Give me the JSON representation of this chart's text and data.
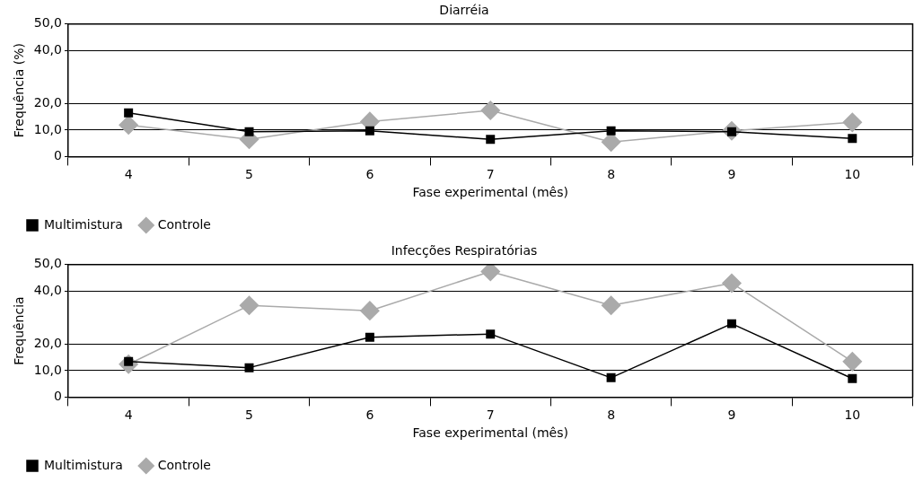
{
  "chart_data": [
    {
      "type": "line",
      "title": "Diarréia",
      "xlabel": "Fase experimental (mês)",
      "ylabel": "Frequência (%)",
      "categories": [
        "4",
        "5",
        "6",
        "7",
        "8",
        "9",
        "10"
      ],
      "series": [
        {
          "name": "Multimistura",
          "color": "#000000",
          "marker": "square",
          "values": [
            16.5,
            9.4,
            9.7,
            6.5,
            9.7,
            9.4,
            6.8
          ]
        },
        {
          "name": "Controle",
          "color": "#aaaaaa",
          "marker": "diamond",
          "values": [
            11.9,
            6.5,
            13.2,
            17.4,
            5.5,
            9.7,
            12.9
          ]
        }
      ],
      "ylim": [
        0,
        50
      ],
      "yticks": [
        {
          "value": 0,
          "label": "0"
        },
        {
          "value": 10,
          "label": "10,0"
        },
        {
          "value": 20,
          "label": "20,0"
        },
        {
          "value": 40,
          "label": "40,0"
        },
        {
          "value": 50,
          "label": "50,0"
        }
      ],
      "grid": "y",
      "legend": "bottom left",
      "line_style": "solid"
    },
    {
      "type": "line",
      "title": "Infecções Respiratórias",
      "xlabel": "Fase experimental (mês)",
      "ylabel": "Frequência",
      "categories": [
        "4",
        "5",
        "6",
        "7",
        "8",
        "9",
        "10"
      ],
      "series": [
        {
          "name": "Multimistura",
          "color": "#000000",
          "marker": "square",
          "values": [
            13.4,
            11.1,
            22.6,
            23.8,
            7.3,
            27.7,
            7.0
          ]
        },
        {
          "name": "Controle",
          "color": "#aaaaaa",
          "marker": "diamond",
          "values": [
            12.4,
            34.6,
            32.6,
            47.4,
            34.6,
            43.0,
            13.4
          ]
        }
      ],
      "ylim": [
        0,
        50
      ],
      "yticks": [
        {
          "value": 0,
          "label": "0"
        },
        {
          "value": 10,
          "label": "10,0"
        },
        {
          "value": 20,
          "label": "20,0"
        },
        {
          "value": 40,
          "label": "40,0"
        },
        {
          "value": 50,
          "label": "50,0"
        }
      ],
      "grid": "y",
      "legend": "bottom left",
      "line_style": "solid"
    }
  ]
}
